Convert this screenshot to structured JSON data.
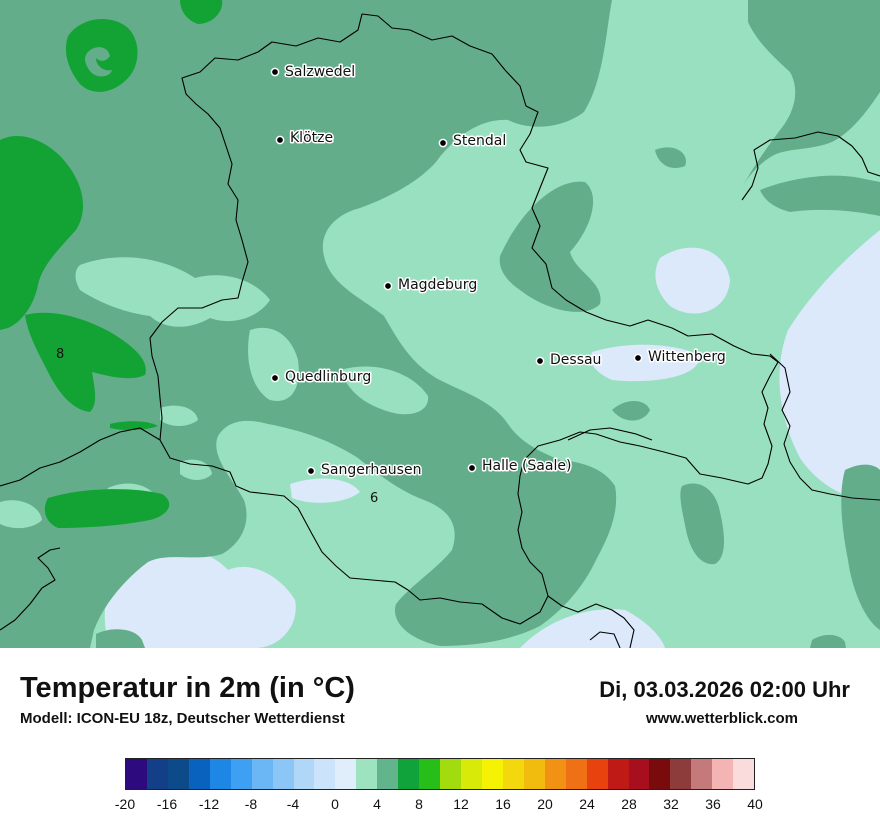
{
  "cities": [
    {
      "name": "Salzwedel"
    },
    {
      "name": "Klötze"
    },
    {
      "name": "Stendal"
    },
    {
      "name": "Magdeburg"
    },
    {
      "name": "Dessau"
    },
    {
      "name": "Wittenberg"
    },
    {
      "name": "Quedlinburg"
    },
    {
      "name": "Sangerhausen"
    },
    {
      "name": "Halle (Saale)"
    }
  ],
  "isolines": [
    "8",
    "6"
  ],
  "title": "Temperatur in 2m (in °C)",
  "model": "Modell: ICON-EU 18z, Deutscher Wetterdienst",
  "datetime": "Di, 03.03.2026 02:00 Uhr",
  "site": "www.wetterblick.com",
  "legend": {
    "colors": [
      "#2e0a7f",
      "#123f87",
      "#0d4a8a",
      "#0a62bf",
      "#1e87e6",
      "#3ea0f2",
      "#6bb6f5",
      "#8cc6f6",
      "#b0d6f8",
      "#cce4fb",
      "#e0eefc",
      "#9ee3c0",
      "#62b48d",
      "#10a33b",
      "#27be1a",
      "#a3dc0e",
      "#d8eb08",
      "#f5f303",
      "#f2d80c",
      "#f1bc0e",
      "#f29214",
      "#f07015",
      "#e8430e",
      "#bf1a16",
      "#a70f1e",
      "#7a0b0c",
      "#8e3b3b",
      "#c47a7a",
      "#f5b4b4",
      "#fbdcdc"
    ],
    "ticks": [
      "-20",
      "-16",
      "-12",
      "-8",
      "-4",
      "0",
      "4",
      "8",
      "12",
      "16",
      "20",
      "24",
      "28",
      "32",
      "36",
      "40"
    ]
  },
  "colors": {
    "dark_green": "#64ad8b",
    "light_green": "#99e0c0",
    "pale_blue": "#dbe9fb",
    "bright_green": "#13a335"
  }
}
